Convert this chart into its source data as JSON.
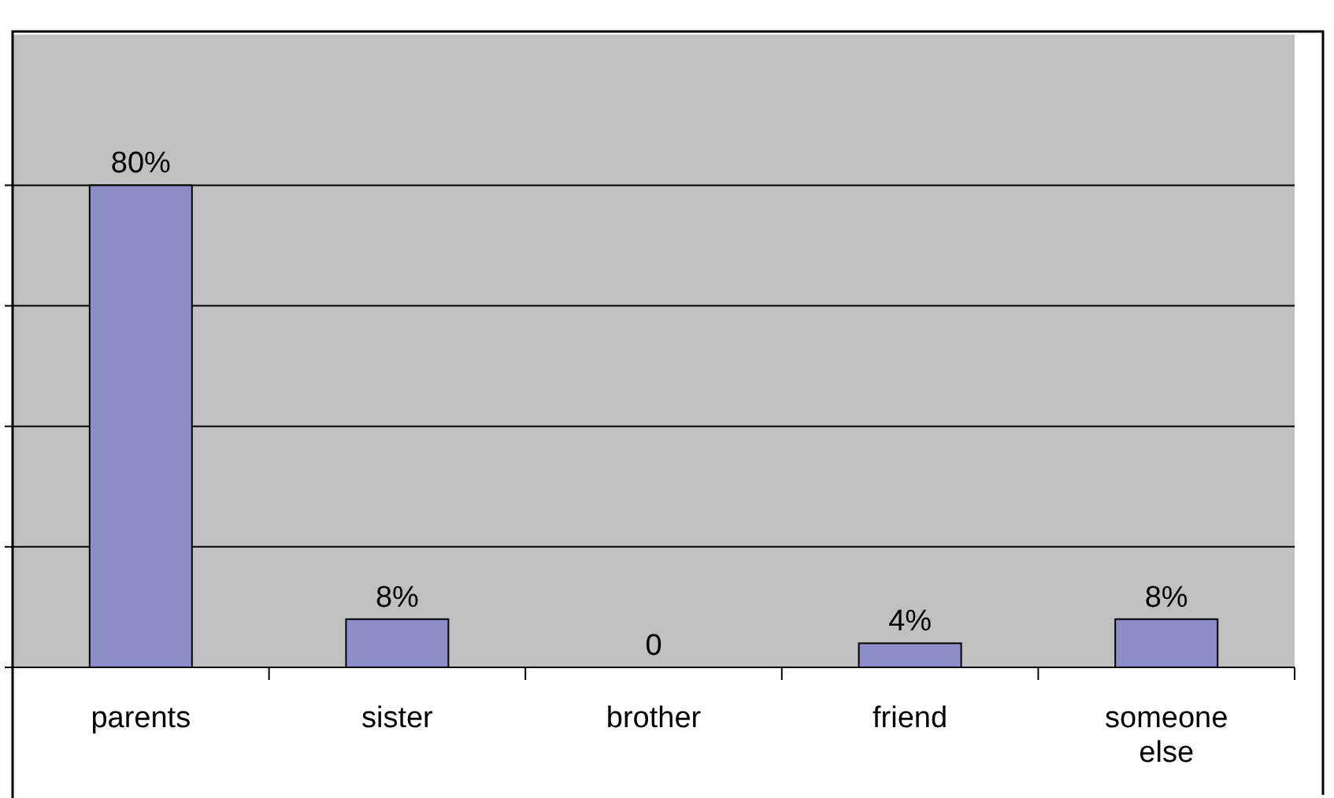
{
  "chart_data": {
    "type": "bar",
    "categories": [
      "parents",
      "sister",
      "brother",
      "friend",
      "someone else"
    ],
    "values": [
      80,
      8,
      0,
      4,
      8
    ],
    "value_labels": [
      "80%",
      "8%",
      "0",
      "4%",
      "8%"
    ],
    "color": "#8c8cc8",
    "ylim": [
      0,
      105
    ],
    "yticks": [
      {
        "value": 0,
        "label": null
      },
      {
        "value": 20,
        "label": null
      },
      {
        "value": 40,
        "label": null
      },
      {
        "value": 60,
        "label": null
      },
      {
        "value": 80,
        "label": null
      }
    ],
    "tick_labels": "x",
    "grid": "y"
  }
}
